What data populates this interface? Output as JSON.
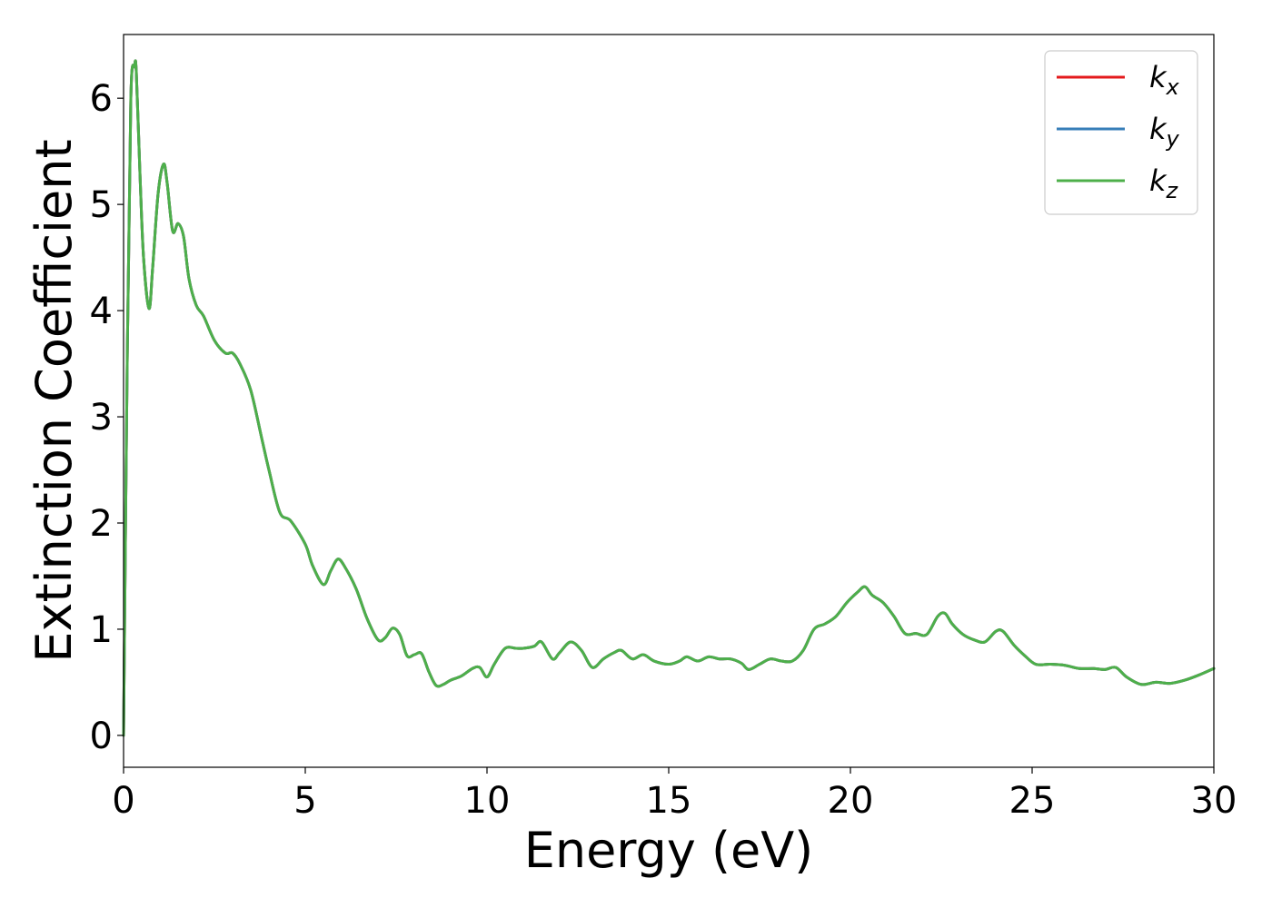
{
  "chart_data": {
    "type": "line",
    "title": "",
    "xlabel": "Energy (eV)",
    "ylabel": "Extinction Coefficient",
    "xlim": [
      0,
      30
    ],
    "ylim": [
      -0.3,
      6.6
    ],
    "xticks": [
      0,
      5,
      10,
      15,
      20,
      25,
      30
    ],
    "yticks": [
      0,
      1,
      2,
      3,
      4,
      5,
      6
    ],
    "grid": false,
    "legend_position": "top-right",
    "series": [
      {
        "name": "k_x",
        "legend_main": "k",
        "legend_sub": "x",
        "color": "#e41a1c",
        "x": [
          0,
          0.1,
          0.2,
          0.3,
          0.35,
          0.45,
          0.55,
          0.7,
          0.8,
          0.95,
          1.1,
          1.2,
          1.35,
          1.5,
          1.65,
          1.8,
          2.0,
          2.2,
          2.5,
          2.8,
          3.0,
          3.2,
          3.5,
          3.8,
          4.0,
          4.3,
          4.6,
          5.0,
          5.2,
          5.5,
          5.7,
          5.9,
          6.1,
          6.4,
          6.7,
          7.0,
          7.2,
          7.4,
          7.6,
          7.8,
          8.0,
          8.2,
          8.4,
          8.6,
          8.8,
          9.0,
          9.3,
          9.6,
          9.8,
          10.0,
          10.2,
          10.5,
          10.8,
          11.0,
          11.3,
          11.5,
          11.8,
          12.0,
          12.3,
          12.6,
          12.9,
          13.2,
          13.5,
          13.7,
          14.0,
          14.3,
          14.6,
          15.0,
          15.3,
          15.5,
          15.8,
          16.1,
          16.4,
          16.7,
          17.0,
          17.2,
          17.5,
          17.8,
          18.1,
          18.4,
          18.7,
          19.0,
          19.3,
          19.6,
          19.9,
          20.2,
          20.4,
          20.6,
          20.9,
          21.2,
          21.5,
          21.8,
          22.1,
          22.4,
          22.6,
          22.8,
          23.1,
          23.4,
          23.7,
          24.0,
          24.2,
          24.5,
          24.8,
          25.1,
          25.5,
          25.9,
          26.3,
          26.7,
          27.0,
          27.3,
          27.6,
          28.0,
          28.4,
          28.8,
          29.2,
          29.6,
          30.0
        ],
        "values": [
          0,
          3.5,
          6.0,
          6.3,
          6.25,
          5.3,
          4.5,
          4.02,
          4.4,
          5.1,
          5.38,
          5.2,
          4.75,
          4.82,
          4.7,
          4.3,
          4.05,
          3.95,
          3.72,
          3.6,
          3.6,
          3.5,
          3.25,
          2.8,
          2.5,
          2.1,
          2.02,
          1.8,
          1.6,
          1.42,
          1.55,
          1.66,
          1.58,
          1.38,
          1.1,
          0.9,
          0.92,
          1.01,
          0.95,
          0.75,
          0.76,
          0.77,
          0.6,
          0.47,
          0.48,
          0.52,
          0.56,
          0.63,
          0.64,
          0.55,
          0.67,
          0.82,
          0.82,
          0.82,
          0.84,
          0.88,
          0.72,
          0.78,
          0.88,
          0.8,
          0.64,
          0.72,
          0.78,
          0.8,
          0.72,
          0.76,
          0.7,
          0.67,
          0.7,
          0.74,
          0.7,
          0.74,
          0.72,
          0.72,
          0.68,
          0.62,
          0.67,
          0.72,
          0.7,
          0.7,
          0.8,
          1.0,
          1.05,
          1.12,
          1.25,
          1.35,
          1.4,
          1.32,
          1.25,
          1.12,
          0.96,
          0.96,
          0.95,
          1.12,
          1.15,
          1.05,
          0.95,
          0.9,
          0.88,
          0.98,
          0.98,
          0.85,
          0.75,
          0.67,
          0.67,
          0.66,
          0.63,
          0.63,
          0.62,
          0.64,
          0.55,
          0.48,
          0.5,
          0.49,
          0.52,
          0.57,
          0.63
        ]
      },
      {
        "name": "k_y",
        "legend_main": "k",
        "legend_sub": "y",
        "color": "#377eb8",
        "x": [
          0,
          0.1,
          0.2,
          0.3,
          0.35,
          0.45,
          0.55,
          0.7,
          0.8,
          0.95,
          1.1,
          1.2,
          1.35,
          1.5,
          1.65,
          1.8,
          2.0,
          2.2,
          2.5,
          2.8,
          3.0,
          3.2,
          3.5,
          3.8,
          4.0,
          4.3,
          4.6,
          5.0,
          5.2,
          5.5,
          5.7,
          5.9,
          6.1,
          6.4,
          6.7,
          7.0,
          7.2,
          7.4,
          7.6,
          7.8,
          8.0,
          8.2,
          8.4,
          8.6,
          8.8,
          9.0,
          9.3,
          9.6,
          9.8,
          10.0,
          10.2,
          10.5,
          10.8,
          11.0,
          11.3,
          11.5,
          11.8,
          12.0,
          12.3,
          12.6,
          12.9,
          13.2,
          13.5,
          13.7,
          14.0,
          14.3,
          14.6,
          15.0,
          15.3,
          15.5,
          15.8,
          16.1,
          16.4,
          16.7,
          17.0,
          17.2,
          17.5,
          17.8,
          18.1,
          18.4,
          18.7,
          19.0,
          19.3,
          19.6,
          19.9,
          20.2,
          20.4,
          20.6,
          20.9,
          21.2,
          21.5,
          21.8,
          22.1,
          22.4,
          22.6,
          22.8,
          23.1,
          23.4,
          23.7,
          24.0,
          24.2,
          24.5,
          24.8,
          25.1,
          25.5,
          25.9,
          26.3,
          26.7,
          27.0,
          27.3,
          27.6,
          28.0,
          28.4,
          28.8,
          29.2,
          29.6,
          30.0
        ],
        "values": [
          0,
          3.5,
          6.0,
          6.3,
          6.25,
          5.3,
          4.5,
          4.02,
          4.4,
          5.1,
          5.38,
          5.2,
          4.75,
          4.82,
          4.7,
          4.3,
          4.05,
          3.95,
          3.72,
          3.6,
          3.6,
          3.5,
          3.25,
          2.8,
          2.5,
          2.1,
          2.02,
          1.8,
          1.6,
          1.42,
          1.55,
          1.66,
          1.58,
          1.38,
          1.1,
          0.9,
          0.92,
          1.01,
          0.95,
          0.75,
          0.76,
          0.77,
          0.6,
          0.47,
          0.48,
          0.52,
          0.56,
          0.63,
          0.64,
          0.55,
          0.67,
          0.82,
          0.82,
          0.82,
          0.84,
          0.88,
          0.72,
          0.78,
          0.88,
          0.8,
          0.64,
          0.72,
          0.78,
          0.8,
          0.72,
          0.76,
          0.7,
          0.67,
          0.7,
          0.74,
          0.7,
          0.74,
          0.72,
          0.72,
          0.68,
          0.62,
          0.67,
          0.72,
          0.7,
          0.7,
          0.8,
          1.0,
          1.05,
          1.12,
          1.25,
          1.35,
          1.4,
          1.32,
          1.25,
          1.12,
          0.96,
          0.96,
          0.95,
          1.12,
          1.15,
          1.05,
          0.95,
          0.9,
          0.88,
          0.98,
          0.98,
          0.85,
          0.75,
          0.67,
          0.67,
          0.66,
          0.63,
          0.63,
          0.62,
          0.64,
          0.55,
          0.48,
          0.5,
          0.49,
          0.52,
          0.57,
          0.63
        ]
      },
      {
        "name": "k_z",
        "legend_main": "k",
        "legend_sub": "z",
        "color": "#4daf4a",
        "x": [
          0,
          0.1,
          0.2,
          0.3,
          0.35,
          0.45,
          0.55,
          0.7,
          0.8,
          0.95,
          1.1,
          1.2,
          1.35,
          1.5,
          1.65,
          1.8,
          2.0,
          2.2,
          2.5,
          2.8,
          3.0,
          3.2,
          3.5,
          3.8,
          4.0,
          4.3,
          4.6,
          5.0,
          5.2,
          5.5,
          5.7,
          5.9,
          6.1,
          6.4,
          6.7,
          7.0,
          7.2,
          7.4,
          7.6,
          7.8,
          8.0,
          8.2,
          8.4,
          8.6,
          8.8,
          9.0,
          9.3,
          9.6,
          9.8,
          10.0,
          10.2,
          10.5,
          10.8,
          11.0,
          11.3,
          11.5,
          11.8,
          12.0,
          12.3,
          12.6,
          12.9,
          13.2,
          13.5,
          13.7,
          14.0,
          14.3,
          14.6,
          15.0,
          15.3,
          15.5,
          15.8,
          16.1,
          16.4,
          16.7,
          17.0,
          17.2,
          17.5,
          17.8,
          18.1,
          18.4,
          18.7,
          19.0,
          19.3,
          19.6,
          19.9,
          20.2,
          20.4,
          20.6,
          20.9,
          21.2,
          21.5,
          21.8,
          22.1,
          22.4,
          22.6,
          22.8,
          23.1,
          23.4,
          23.7,
          24.0,
          24.2,
          24.5,
          24.8,
          25.1,
          25.5,
          25.9,
          26.3,
          26.7,
          27.0,
          27.3,
          27.6,
          28.0,
          28.4,
          28.8,
          29.2,
          29.6,
          30.0
        ],
        "values": [
          0,
          3.5,
          6.0,
          6.3,
          6.25,
          5.3,
          4.5,
          4.02,
          4.4,
          5.1,
          5.38,
          5.2,
          4.75,
          4.82,
          4.7,
          4.3,
          4.05,
          3.95,
          3.72,
          3.6,
          3.6,
          3.5,
          3.25,
          2.8,
          2.5,
          2.1,
          2.02,
          1.8,
          1.6,
          1.42,
          1.55,
          1.66,
          1.58,
          1.38,
          1.1,
          0.9,
          0.92,
          1.01,
          0.95,
          0.75,
          0.76,
          0.77,
          0.6,
          0.47,
          0.48,
          0.52,
          0.56,
          0.63,
          0.64,
          0.55,
          0.67,
          0.82,
          0.82,
          0.82,
          0.84,
          0.88,
          0.72,
          0.78,
          0.88,
          0.8,
          0.64,
          0.72,
          0.78,
          0.8,
          0.72,
          0.76,
          0.7,
          0.67,
          0.7,
          0.74,
          0.7,
          0.74,
          0.72,
          0.72,
          0.68,
          0.62,
          0.67,
          0.72,
          0.7,
          0.7,
          0.8,
          1.0,
          1.05,
          1.12,
          1.25,
          1.35,
          1.4,
          1.32,
          1.25,
          1.12,
          0.96,
          0.96,
          0.95,
          1.12,
          1.15,
          1.05,
          0.95,
          0.9,
          0.88,
          0.98,
          0.98,
          0.85,
          0.75,
          0.67,
          0.67,
          0.66,
          0.63,
          0.63,
          0.62,
          0.64,
          0.55,
          0.48,
          0.5,
          0.49,
          0.52,
          0.57,
          0.63
        ]
      }
    ]
  }
}
